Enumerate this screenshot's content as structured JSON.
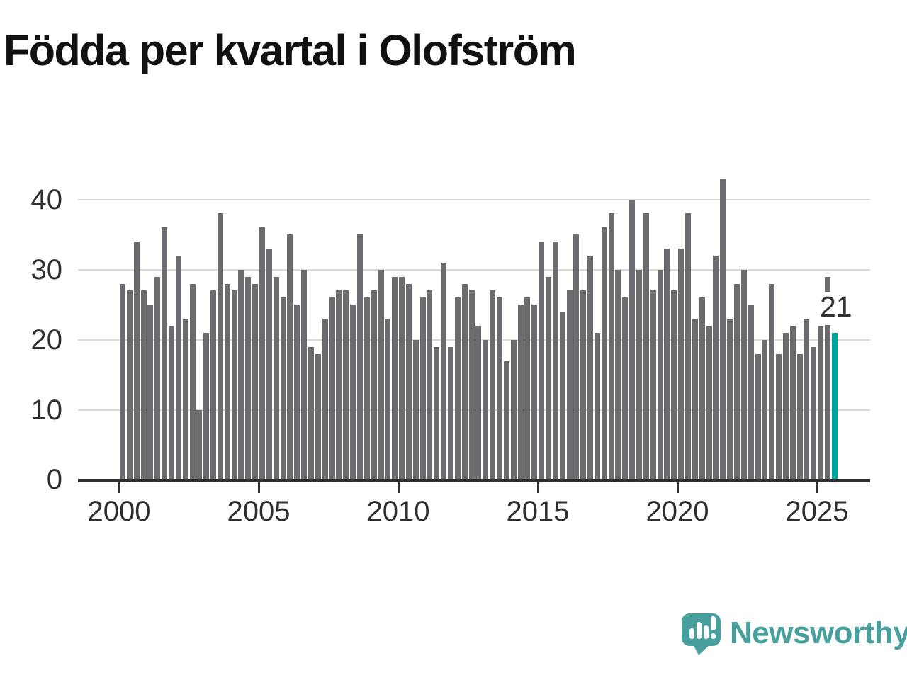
{
  "title": "Födda per kvartal i Olofström",
  "annotation": {
    "label": "21"
  },
  "branding": {
    "name": "Newsworthy",
    "color": "#47a09d"
  },
  "colors": {
    "bar": "#6b6b70",
    "highlight": "#00a29b",
    "grid": "#d9d9d9",
    "axis": "#2f2f2f",
    "tick_text": "#2e2e2e",
    "title_text": "#111111"
  },
  "chart_data": {
    "type": "bar",
    "title": "Födda per kvartal i Olofström",
    "frequency": "quarterly",
    "start_period": "2000 Q1",
    "end_period": "2025 Q3",
    "x_tick_labels": [
      "2000",
      "2005",
      "2010",
      "2015",
      "2020",
      "2025"
    ],
    "y_tick_values": [
      0,
      10,
      20,
      30,
      40
    ],
    "ylim": [
      0,
      45
    ],
    "grid": true,
    "legend": false,
    "series": [
      {
        "name": "Födda per kvartal",
        "values": [
          28,
          27,
          34,
          27,
          25,
          29,
          36,
          22,
          32,
          23,
          28,
          10,
          21,
          27,
          38,
          28,
          27,
          30,
          29,
          28,
          36,
          33,
          29,
          26,
          35,
          25,
          30,
          19,
          18,
          23,
          26,
          27,
          27,
          25,
          35,
          26,
          27,
          30,
          23,
          29,
          29,
          28,
          20,
          26,
          27,
          19,
          31,
          19,
          26,
          28,
          27,
          22,
          20,
          27,
          26,
          17,
          20,
          25,
          26,
          25,
          34,
          29,
          34,
          24,
          27,
          35,
          27,
          32,
          21,
          36,
          38,
          30,
          26,
          40,
          30,
          38,
          27,
          30,
          33,
          27,
          33,
          38,
          23,
          26,
          22,
          32,
          43,
          23,
          28,
          30,
          25,
          18,
          20,
          28,
          18,
          21,
          22,
          18,
          23,
          19,
          22,
          29,
          21
        ]
      }
    ],
    "highlight_last": {
      "period": "2025 Q3",
      "value": 21,
      "color": "#00a29b"
    }
  }
}
